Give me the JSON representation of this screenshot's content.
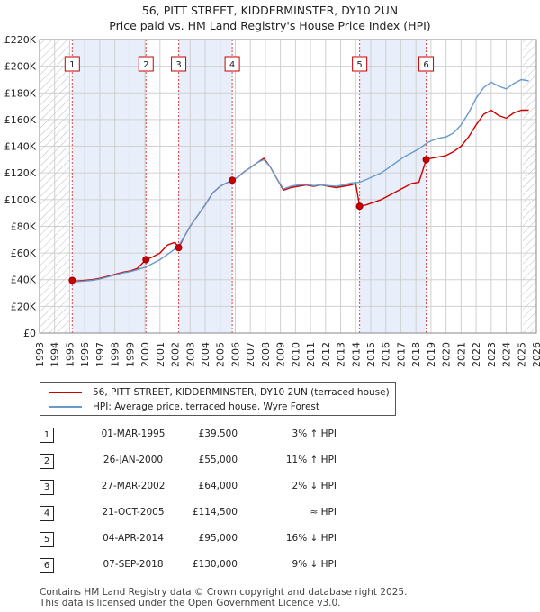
{
  "title_line1": "56, PITT STREET, KIDDERMINSTER, DY10 2UN",
  "title_line2": "Price paid vs. HM Land Registry's House Price Index (HPI)",
  "chart_data": {
    "type": "line",
    "title": "56, PITT STREET, KIDDERMINSTER, DY10 2UN — Price paid vs. HM Land Registry's House Price Index (HPI)",
    "xlim": [
      1993,
      2026
    ],
    "ylim": [
      0,
      220000
    ],
    "x_ticks": [
      1993,
      1994,
      1995,
      1996,
      1997,
      1998,
      1999,
      2000,
      2001,
      2002,
      2003,
      2004,
      2005,
      2006,
      2007,
      2008,
      2009,
      2010,
      2011,
      2012,
      2013,
      2014,
      2015,
      2016,
      2017,
      2018,
      2019,
      2020,
      2021,
      2022,
      2023,
      2024,
      2025,
      2026
    ],
    "y_ticks": [
      {
        "value": 0,
        "label": "£0"
      },
      {
        "value": 20000,
        "label": "£20K"
      },
      {
        "value": 40000,
        "label": "£40K"
      },
      {
        "value": 60000,
        "label": "£60K"
      },
      {
        "value": 80000,
        "label": "£80K"
      },
      {
        "value": 100000,
        "label": "£100K"
      },
      {
        "value": 120000,
        "label": "£120K"
      },
      {
        "value": 140000,
        "label": "£140K"
      },
      {
        "value": 160000,
        "label": "£160K"
      },
      {
        "value": 180000,
        "label": "£180K"
      },
      {
        "value": 200000,
        "label": "£200K"
      },
      {
        "value": 220000,
        "label": "£220K"
      }
    ],
    "hatch_regions": [
      [
        1993,
        1995.0
      ],
      [
        2025.1,
        2026
      ]
    ],
    "shaded_bands": [
      [
        1995.17,
        2000.07
      ],
      [
        2002.24,
        2005.8
      ],
      [
        2014.26,
        2018.68
      ]
    ],
    "series": [
      {
        "name": "56, PITT STREET, KIDDERMINSTER, DY10 2UN (terraced house)",
        "color": "#cc0000",
        "points": [
          [
            1995.17,
            39500
          ],
          [
            1995.5,
            39000
          ],
          [
            1996,
            39500
          ],
          [
            1996.5,
            40000
          ],
          [
            1997,
            41000
          ],
          [
            1997.5,
            42500
          ],
          [
            1998,
            44000
          ],
          [
            1998.5,
            45500
          ],
          [
            1999,
            46500
          ],
          [
            1999.5,
            48500
          ],
          [
            2000.07,
            55000
          ],
          [
            2000.5,
            57000
          ],
          [
            2001,
            60000
          ],
          [
            2001.5,
            66000
          ],
          [
            2002.0,
            68000
          ],
          [
            2002.24,
            64000
          ],
          [
            2002.6,
            72000
          ],
          [
            2003,
            80000
          ],
          [
            2003.5,
            88000
          ],
          [
            2004,
            96000
          ],
          [
            2004.5,
            105000
          ],
          [
            2005,
            110000
          ],
          [
            2005.5,
            113000
          ],
          [
            2005.8,
            114500
          ],
          [
            2006.2,
            117000
          ],
          [
            2006.6,
            121000
          ],
          [
            2007,
            124000
          ],
          [
            2007.5,
            128000
          ],
          [
            2007.9,
            131000
          ],
          [
            2008.3,
            125000
          ],
          [
            2008.8,
            115000
          ],
          [
            2009.2,
            107000
          ],
          [
            2009.7,
            109000
          ],
          [
            2010.2,
            110000
          ],
          [
            2010.7,
            111000
          ],
          [
            2011.2,
            110000
          ],
          [
            2011.7,
            111000
          ],
          [
            2012.2,
            110000
          ],
          [
            2012.7,
            109000
          ],
          [
            2013.2,
            110000
          ],
          [
            2013.7,
            111000
          ],
          [
            2014.0,
            112000
          ],
          [
            2014.26,
            95000
          ],
          [
            2014.7,
            96000
          ],
          [
            2015.2,
            98000
          ],
          [
            2015.7,
            100000
          ],
          [
            2016.2,
            103000
          ],
          [
            2016.7,
            106000
          ],
          [
            2017.2,
            109000
          ],
          [
            2017.7,
            112000
          ],
          [
            2018.2,
            113000
          ],
          [
            2018.68,
            130000
          ],
          [
            2019.0,
            131000
          ],
          [
            2019.5,
            132000
          ],
          [
            2020.0,
            133000
          ],
          [
            2020.5,
            136000
          ],
          [
            2021.0,
            140000
          ],
          [
            2021.5,
            147000
          ],
          [
            2022.0,
            156000
          ],
          [
            2022.5,
            164000
          ],
          [
            2023.0,
            167000
          ],
          [
            2023.5,
            163000
          ],
          [
            2024.0,
            161000
          ],
          [
            2024.5,
            165000
          ],
          [
            2025.0,
            167000
          ],
          [
            2025.5,
            167000
          ]
        ]
      },
      {
        "name": "HPI: Average price, terraced house, Wyre Forest",
        "color": "#6699cc",
        "points": [
          [
            1995.17,
            38500
          ],
          [
            1995.5,
            38500
          ],
          [
            1996,
            39000
          ],
          [
            1996.5,
            39500
          ],
          [
            1997,
            40500
          ],
          [
            1997.5,
            42000
          ],
          [
            1998,
            43500
          ],
          [
            1998.5,
            45000
          ],
          [
            1999,
            46000
          ],
          [
            1999.5,
            47500
          ],
          [
            2000.07,
            49500
          ],
          [
            2000.5,
            52000
          ],
          [
            2001,
            55000
          ],
          [
            2001.5,
            59000
          ],
          [
            2002.0,
            63000
          ],
          [
            2002.24,
            65500
          ],
          [
            2002.6,
            72000
          ],
          [
            2003,
            80000
          ],
          [
            2003.5,
            88000
          ],
          [
            2004,
            96000
          ],
          [
            2004.5,
            105000
          ],
          [
            2005,
            110000
          ],
          [
            2005.5,
            113000
          ],
          [
            2005.8,
            114500
          ],
          [
            2006.2,
            117000
          ],
          [
            2006.6,
            121000
          ],
          [
            2007,
            124000
          ],
          [
            2007.5,
            128000
          ],
          [
            2007.9,
            130000
          ],
          [
            2008.3,
            125000
          ],
          [
            2008.8,
            115000
          ],
          [
            2009.2,
            108000
          ],
          [
            2009.7,
            110000
          ],
          [
            2010.2,
            111000
          ],
          [
            2010.7,
            111500
          ],
          [
            2011.2,
            110500
          ],
          [
            2011.7,
            111000
          ],
          [
            2012.2,
            110500
          ],
          [
            2012.7,
            110000
          ],
          [
            2013.2,
            111000
          ],
          [
            2013.7,
            112500
          ],
          [
            2014.26,
            113000
          ],
          [
            2014.7,
            115000
          ],
          [
            2015.2,
            117500
          ],
          [
            2015.7,
            120000
          ],
          [
            2016.2,
            124000
          ],
          [
            2016.7,
            128000
          ],
          [
            2017.2,
            132000
          ],
          [
            2017.7,
            135000
          ],
          [
            2018.2,
            138000
          ],
          [
            2018.68,
            142000
          ],
          [
            2019.0,
            144000
          ],
          [
            2019.5,
            146000
          ],
          [
            2020.0,
            147000
          ],
          [
            2020.5,
            150000
          ],
          [
            2021.0,
            156000
          ],
          [
            2021.5,
            165000
          ],
          [
            2022.0,
            176000
          ],
          [
            2022.5,
            184000
          ],
          [
            2023.0,
            188000
          ],
          [
            2023.5,
            185000
          ],
          [
            2024.0,
            183000
          ],
          [
            2024.5,
            187000
          ],
          [
            2025.0,
            190000
          ],
          [
            2025.5,
            189000
          ]
        ]
      }
    ],
    "sales": [
      {
        "n": "1",
        "x": 1995.17,
        "y": 39500,
        "date": "01-MAR-1995",
        "price": "£39,500",
        "hpi": "3% ↑ HPI"
      },
      {
        "n": "2",
        "x": 2000.07,
        "y": 55000,
        "date": "26-JAN-2000",
        "price": "£55,000",
        "hpi": "11% ↑ HPI"
      },
      {
        "n": "3",
        "x": 2002.24,
        "y": 64000,
        "date": "27-MAR-2002",
        "price": "£64,000",
        "hpi": "2% ↓ HPI"
      },
      {
        "n": "4",
        "x": 2005.8,
        "y": 114500,
        "date": "21-OCT-2005",
        "price": "£114,500",
        "hpi": "≈ HPI"
      },
      {
        "n": "5",
        "x": 2014.26,
        "y": 95000,
        "date": "04-APR-2014",
        "price": "£95,000",
        "hpi": "16% ↓ HPI"
      },
      {
        "n": "6",
        "x": 2018.68,
        "y": 130000,
        "date": "07-SEP-2018",
        "price": "£130,000",
        "hpi": "9% ↓ HPI"
      }
    ]
  },
  "legend": {
    "property_label": "56, PITT STREET, KIDDERMINSTER, DY10 2UN (terraced house)",
    "hpi_label": "HPI: Average price, terraced house, Wyre Forest",
    "property_color": "#cc0000",
    "hpi_color": "#6699cc"
  },
  "footer": {
    "line1": "Contains HM Land Registry data © Crown copyright and database right 2025.",
    "line2": "This data is licensed under the Open Government Licence v3.0."
  }
}
